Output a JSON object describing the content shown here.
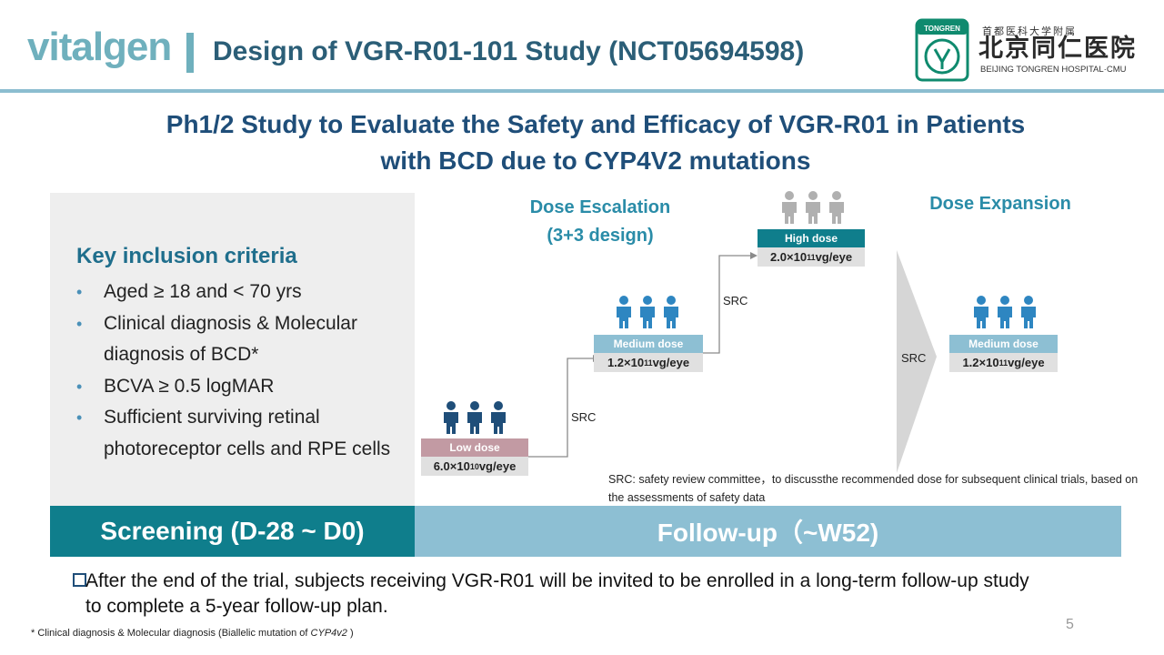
{
  "header": {
    "logo_text": "vitalgen",
    "title": "Design of VGR-R01-101 Study (NCT05694598)"
  },
  "hospital": {
    "emblem_text": "TONGREN",
    "small_cn": "首都医科大学附属",
    "name_cn": "北京同仁医院",
    "name_en": "BEIJING TONGREN HOSPITAL·CMU"
  },
  "subtitle": {
    "line1": "Ph1/2 Study to Evaluate the Safety and Efficacy of VGR-R01 in Patients",
    "line2": "with BCD due to CYP4V2 mutations"
  },
  "criteria": {
    "heading": "Key inclusion criteria",
    "items": [
      "Aged ≥ 18 and < 70 yrs",
      "Clinical diagnosis & Molecular diagnosis of BCD*",
      "BCVA ≥ 0.5 logMAR",
      "Sufficient surviving retinal photoreceptor cells and RPE cells"
    ]
  },
  "escalation": {
    "heading_line1": "Dose Escalation",
    "heading_line2": "(3+3 design)"
  },
  "expansion": {
    "heading": "Dose Expansion"
  },
  "doses": {
    "low": {
      "label": "Low dose",
      "base": "6.0×10",
      "exp": "10",
      "unit": "vg/eye",
      "color": "#c29aa3"
    },
    "medium": {
      "label": "Medium dose",
      "base": "1.2×10",
      "exp": "11",
      "unit": "vg/eye",
      "color": "#8dbfd3"
    },
    "high": {
      "label": "High dose",
      "base": "2.0×10",
      "exp": "11",
      "unit": "vg/eye",
      "color": "#0f7e8c"
    },
    "expansion": {
      "label": "Medium dose",
      "base": "1.2×10",
      "exp": "11",
      "unit": "vg/eye",
      "color": "#8dbfd3"
    }
  },
  "src_label": "SRC",
  "src_note": "SRC: safety review committee，to discussthe recommended dose for subsequent clinical trials, based on the assessments of safety data",
  "bands": {
    "screening": "Screening (D-28 ~ D0)",
    "followup": "Follow-up（~W52)"
  },
  "followup_note": "After the end of the trial, subjects receiving VGR-R01 will be invited to be enrolled in a long-term follow-up study to complete a 5-year follow-up plan.",
  "footnote": {
    "prefix": "* Clinical diagnosis & Molecular diagnosis (Biallelic mutation of ",
    "gene": "CYP4v2",
    "suffix": " )"
  },
  "page_number": "5",
  "colors": {
    "people_dark": "#1f4e79",
    "people_blue": "#2e86c1",
    "people_gray": "#b0b0b0"
  }
}
